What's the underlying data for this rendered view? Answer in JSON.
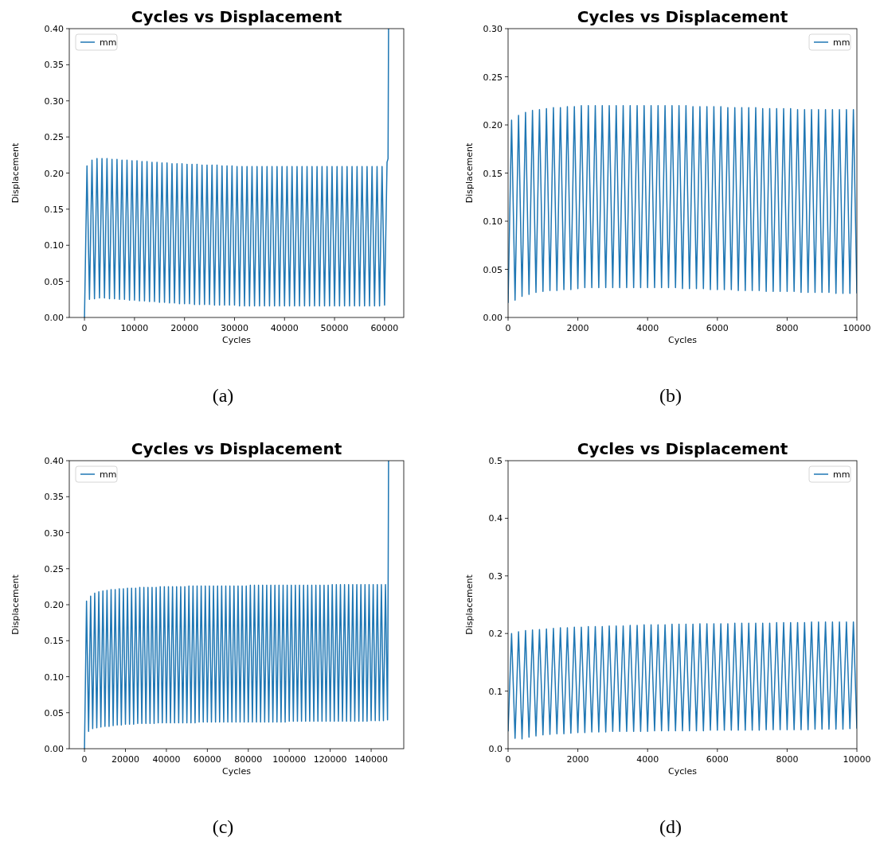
{
  "chart_data": [
    {
      "type": "line",
      "title": "Cycles vs Displacement",
      "xlabel": "Cycles",
      "ylabel": "Displacement",
      "legend": "top left",
      "annotations": [
        "(a)"
      ],
      "xlim": [
        -3040,
        63840
      ],
      "xticks": [
        0,
        10000,
        20000,
        30000,
        40000,
        50000,
        60000
      ],
      "ylim": [
        0,
        0.4
      ],
      "yticks": [
        {
          "value": 0,
          "label": "0.00"
        },
        {
          "value": 0.05,
          "label": "0.05"
        },
        {
          "value": 0.1,
          "label": "0.10"
        },
        {
          "value": 0.15,
          "label": "0.15"
        },
        {
          "value": 0.2,
          "label": "0.20"
        },
        {
          "value": 0.25,
          "label": "0.25"
        },
        {
          "value": 0.3,
          "label": "0.30"
        },
        {
          "value": 0.35,
          "label": "0.35"
        },
        {
          "value": 0.4,
          "label": "0.40"
        }
      ],
      "series": [
        {
          "name": "mm",
          "color": "#1f77b4",
          "x": [
            0,
            500,
            1000,
            1500,
            2000,
            2500,
            3000,
            3500,
            4000,
            4500,
            5000,
            5500,
            6000,
            6500,
            7000,
            7500,
            8000,
            8500,
            9000,
            9500,
            10000,
            10500,
            11000,
            11500,
            12000,
            12500,
            13000,
            13500,
            14000,
            14500,
            15000,
            15500,
            16000,
            16500,
            17000,
            17500,
            18000,
            18500,
            19000,
            19500,
            20000,
            20500,
            21000,
            21500,
            22000,
            22500,
            23000,
            23500,
            24000,
            24500,
            25000,
            25500,
            26000,
            26500,
            27000,
            27500,
            28000,
            28500,
            29000,
            29500,
            30000,
            30500,
            31000,
            31500,
            32000,
            32500,
            33000,
            33500,
            34000,
            34500,
            35000,
            35500,
            36000,
            36500,
            37000,
            37500,
            38000,
            38500,
            39000,
            39500,
            40000,
            40500,
            41000,
            41500,
            42000,
            42500,
            43000,
            43500,
            44000,
            44500,
            45000,
            45500,
            46000,
            46500,
            47000,
            47500,
            48000,
            48500,
            49000,
            49500,
            50000,
            50500,
            51000,
            51500,
            52000,
            52500,
            53000,
            53500,
            54000,
            54500,
            55000,
            55500,
            56000,
            56500,
            57000,
            57500,
            58000,
            58500,
            59000,
            59500,
            60000,
            60500,
            60700,
            60800
          ],
          "values": [
            0,
            0.21,
            0.025,
            0.218,
            0.026,
            0.22,
            0.027,
            0.22,
            0.027,
            0.22,
            0.026,
            0.219,
            0.026,
            0.219,
            0.025,
            0.218,
            0.025,
            0.218,
            0.024,
            0.217,
            0.024,
            0.217,
            0.023,
            0.216,
            0.023,
            0.216,
            0.022,
            0.215,
            0.022,
            0.215,
            0.021,
            0.214,
            0.021,
            0.214,
            0.02,
            0.213,
            0.02,
            0.213,
            0.019,
            0.213,
            0.019,
            0.212,
            0.019,
            0.212,
            0.018,
            0.212,
            0.018,
            0.211,
            0.018,
            0.211,
            0.018,
            0.211,
            0.017,
            0.211,
            0.017,
            0.21,
            0.017,
            0.21,
            0.017,
            0.21,
            0.017,
            0.209,
            0.016,
            0.209,
            0.016,
            0.209,
            0.016,
            0.209,
            0.016,
            0.209,
            0.016,
            0.209,
            0.016,
            0.209,
            0.016,
            0.209,
            0.016,
            0.209,
            0.016,
            0.209,
            0.016,
            0.209,
            0.016,
            0.209,
            0.016,
            0.209,
            0.016,
            0.209,
            0.016,
            0.209,
            0.016,
            0.209,
            0.016,
            0.209,
            0.016,
            0.209,
            0.016,
            0.209,
            0.016,
            0.209,
            0.016,
            0.209,
            0.016,
            0.209,
            0.016,
            0.209,
            0.016,
            0.209,
            0.016,
            0.209,
            0.016,
            0.209,
            0.016,
            0.209,
            0.016,
            0.209,
            0.016,
            0.209,
            0.016,
            0.209,
            0.017,
            0.215,
            0.22,
            0.4
          ]
        }
      ]
    },
    {
      "type": "line",
      "title": "Cycles vs Displacement",
      "xlabel": "Cycles",
      "ylabel": "Displacement",
      "legend": "top right",
      "annotations": [
        "(b)"
      ],
      "xlim": [
        0,
        10000
      ],
      "xticks": [
        0,
        2000,
        4000,
        6000,
        8000,
        10000
      ],
      "ylim": [
        0,
        0.3
      ],
      "yticks": [
        {
          "value": 0,
          "label": "0.00"
        },
        {
          "value": 0.05,
          "label": "0.05"
        },
        {
          "value": 0.1,
          "label": "0.10"
        },
        {
          "value": 0.15,
          "label": "0.15"
        },
        {
          "value": 0.2,
          "label": "0.20"
        },
        {
          "value": 0.25,
          "label": "0.25"
        },
        {
          "value": 0.3,
          "label": "0.30"
        }
      ],
      "series": [
        {
          "name": "mm",
          "color": "#1f77b4",
          "x": [
            0,
            100,
            200,
            300,
            400,
            500,
            600,
            700,
            800,
            900,
            1000,
            1100,
            1200,
            1300,
            1400,
            1500,
            1600,
            1700,
            1800,
            1900,
            2000,
            2100,
            2200,
            2300,
            2400,
            2500,
            2600,
            2700,
            2800,
            2900,
            3000,
            3100,
            3200,
            3300,
            3400,
            3500,
            3600,
            3700,
            3800,
            3900,
            4000,
            4100,
            4200,
            4300,
            4400,
            4500,
            4600,
            4700,
            4800,
            4900,
            5000,
            5100,
            5200,
            5300,
            5400,
            5500,
            5600,
            5700,
            5800,
            5900,
            6000,
            6100,
            6200,
            6300,
            6400,
            6500,
            6600,
            6700,
            6800,
            6900,
            7000,
            7100,
            7200,
            7300,
            7400,
            7500,
            7600,
            7700,
            7800,
            7900,
            8000,
            8100,
            8200,
            8300,
            8400,
            8500,
            8600,
            8700,
            8800,
            8900,
            9000,
            9100,
            9200,
            9300,
            9400,
            9500,
            9600,
            9700,
            9800,
            9900,
            10000
          ],
          "values": [
            0.015,
            0.205,
            0.018,
            0.21,
            0.022,
            0.213,
            0.024,
            0.215,
            0.026,
            0.216,
            0.027,
            0.217,
            0.028,
            0.218,
            0.028,
            0.218,
            0.029,
            0.219,
            0.029,
            0.219,
            0.03,
            0.22,
            0.031,
            0.22,
            0.031,
            0.22,
            0.031,
            0.22,
            0.031,
            0.22,
            0.031,
            0.22,
            0.031,
            0.22,
            0.031,
            0.22,
            0.031,
            0.22,
            0.031,
            0.22,
            0.031,
            0.22,
            0.031,
            0.22,
            0.031,
            0.22,
            0.031,
            0.22,
            0.031,
            0.22,
            0.03,
            0.22,
            0.03,
            0.219,
            0.03,
            0.219,
            0.03,
            0.219,
            0.029,
            0.219,
            0.029,
            0.219,
            0.029,
            0.218,
            0.029,
            0.218,
            0.028,
            0.218,
            0.028,
            0.218,
            0.028,
            0.218,
            0.028,
            0.217,
            0.027,
            0.217,
            0.027,
            0.217,
            0.027,
            0.217,
            0.027,
            0.217,
            0.027,
            0.216,
            0.026,
            0.216,
            0.026,
            0.216,
            0.026,
            0.216,
            0.026,
            0.216,
            0.026,
            0.216,
            0.025,
            0.216,
            0.025,
            0.216,
            0.025,
            0.216,
            0.025
          ]
        }
      ]
    },
    {
      "type": "line",
      "title": "Cycles vs Displacement",
      "xlabel": "Cycles",
      "ylabel": "Displacement",
      "legend": "top left",
      "annotations": [
        "(c)"
      ],
      "xlim": [
        -7425,
        155925
      ],
      "xticks": [
        0,
        20000,
        40000,
        60000,
        80000,
        100000,
        120000,
        140000
      ],
      "ylim": [
        0,
        0.4
      ],
      "yticks": [
        {
          "value": 0,
          "label": "0.00"
        },
        {
          "value": 0.05,
          "label": "0.05"
        },
        {
          "value": 0.1,
          "label": "0.10"
        },
        {
          "value": 0.15,
          "label": "0.15"
        },
        {
          "value": 0.2,
          "label": "0.20"
        },
        {
          "value": 0.25,
          "label": "0.25"
        },
        {
          "value": 0.3,
          "label": "0.30"
        },
        {
          "value": 0.35,
          "label": "0.35"
        },
        {
          "value": 0.4,
          "label": "0.40"
        }
      ],
      "series": [
        {
          "name": "mm",
          "color": "#1f77b4",
          "x": [
            0,
            1000,
            2000,
            3000,
            4000,
            5000,
            6000,
            7000,
            8000,
            9000,
            10000,
            11000,
            12000,
            13000,
            14000,
            15000,
            16000,
            17000,
            18000,
            19000,
            20000,
            21000,
            22000,
            23000,
            24000,
            25000,
            26000,
            27000,
            28000,
            29000,
            30000,
            31000,
            32000,
            33000,
            34000,
            35000,
            36000,
            37000,
            38000,
            39000,
            40000,
            41000,
            42000,
            43000,
            44000,
            45000,
            46000,
            47000,
            48000,
            49000,
            50000,
            51000,
            52000,
            53000,
            54000,
            55000,
            56000,
            57000,
            58000,
            59000,
            60000,
            61000,
            62000,
            63000,
            64000,
            65000,
            66000,
            67000,
            68000,
            69000,
            70000,
            71000,
            72000,
            73000,
            74000,
            75000,
            76000,
            77000,
            78000,
            79000,
            80000,
            81000,
            82000,
            83000,
            84000,
            85000,
            86000,
            87000,
            88000,
            89000,
            90000,
            91000,
            92000,
            93000,
            94000,
            95000,
            96000,
            97000,
            98000,
            99000,
            100000,
            101000,
            102000,
            103000,
            104000,
            105000,
            106000,
            107000,
            108000,
            109000,
            110000,
            111000,
            112000,
            113000,
            114000,
            115000,
            116000,
            117000,
            118000,
            119000,
            120000,
            121000,
            122000,
            123000,
            124000,
            125000,
            126000,
            127000,
            128000,
            129000,
            130000,
            131000,
            132000,
            133000,
            134000,
            135000,
            136000,
            137000,
            138000,
            139000,
            140000,
            141000,
            142000,
            143000,
            144000,
            145000,
            146000,
            147000,
            148000,
            148300,
            148500
          ],
          "values": [
            0,
            0.205,
            0.024,
            0.212,
            0.028,
            0.216,
            0.029,
            0.218,
            0.03,
            0.219,
            0.031,
            0.22,
            0.031,
            0.221,
            0.032,
            0.221,
            0.033,
            0.222,
            0.033,
            0.222,
            0.034,
            0.223,
            0.034,
            0.223,
            0.034,
            0.223,
            0.035,
            0.224,
            0.035,
            0.224,
            0.035,
            0.224,
            0.035,
            0.224,
            0.035,
            0.224,
            0.036,
            0.225,
            0.036,
            0.225,
            0.036,
            0.225,
            0.036,
            0.225,
            0.036,
            0.225,
            0.036,
            0.225,
            0.036,
            0.225,
            0.036,
            0.226,
            0.036,
            0.226,
            0.036,
            0.226,
            0.037,
            0.226,
            0.037,
            0.226,
            0.037,
            0.226,
            0.037,
            0.226,
            0.037,
            0.226,
            0.037,
            0.226,
            0.037,
            0.226,
            0.037,
            0.226,
            0.037,
            0.226,
            0.037,
            0.226,
            0.037,
            0.226,
            0.037,
            0.226,
            0.037,
            0.227,
            0.037,
            0.227,
            0.037,
            0.227,
            0.037,
            0.227,
            0.037,
            0.227,
            0.037,
            0.227,
            0.037,
            0.227,
            0.037,
            0.227,
            0.037,
            0.227,
            0.037,
            0.227,
            0.038,
            0.227,
            0.038,
            0.227,
            0.038,
            0.227,
            0.038,
            0.227,
            0.038,
            0.227,
            0.038,
            0.227,
            0.038,
            0.227,
            0.038,
            0.227,
            0.038,
            0.227,
            0.038,
            0.227,
            0.038,
            0.228,
            0.038,
            0.228,
            0.038,
            0.228,
            0.038,
            0.228,
            0.038,
            0.228,
            0.038,
            0.228,
            0.038,
            0.228,
            0.038,
            0.228,
            0.038,
            0.228,
            0.038,
            0.228,
            0.039,
            0.228,
            0.039,
            0.228,
            0.039,
            0.228,
            0.039,
            0.228,
            0.04,
            0.235,
            0.4
          ]
        }
      ]
    },
    {
      "type": "line",
      "title": "Cycles vs Displacement",
      "xlabel": "Cycles",
      "ylabel": "Displacement",
      "legend": "top right",
      "annotations": [
        "(d)"
      ],
      "xlim": [
        0,
        10000
      ],
      "xticks": [
        0,
        2000,
        4000,
        6000,
        8000,
        10000
      ],
      "ylim": [
        0,
        0.5
      ],
      "yticks": [
        {
          "value": 0,
          "label": "0.0"
        },
        {
          "value": 0.1,
          "label": "0.1"
        },
        {
          "value": 0.2,
          "label": "0.2"
        },
        {
          "value": 0.3,
          "label": "0.3"
        },
        {
          "value": 0.4,
          "label": "0.4"
        },
        {
          "value": 0.5,
          "label": "0.5"
        }
      ],
      "series": [
        {
          "name": "mm",
          "color": "#1f77b4",
          "x": [
            0,
            100,
            200,
            300,
            400,
            500,
            600,
            700,
            800,
            900,
            1000,
            1100,
            1200,
            1300,
            1400,
            1500,
            1600,
            1700,
            1800,
            1900,
            2000,
            2100,
            2200,
            2300,
            2400,
            2500,
            2600,
            2700,
            2800,
            2900,
            3000,
            3100,
            3200,
            3300,
            3400,
            3500,
            3600,
            3700,
            3800,
            3900,
            4000,
            4100,
            4200,
            4300,
            4400,
            4500,
            4600,
            4700,
            4800,
            4900,
            5000,
            5100,
            5200,
            5300,
            5400,
            5500,
            5600,
            5700,
            5800,
            5900,
            6000,
            6100,
            6200,
            6300,
            6400,
            6500,
            6600,
            6700,
            6800,
            6900,
            7000,
            7100,
            7200,
            7300,
            7400,
            7500,
            7600,
            7700,
            7800,
            7900,
            8000,
            8100,
            8200,
            8300,
            8400,
            8500,
            8600,
            8700,
            8800,
            8900,
            9000,
            9100,
            9200,
            9300,
            9400,
            9500,
            9600,
            9700,
            9800,
            9900,
            10000
          ],
          "values": [
            0.03,
            0.2,
            0.018,
            0.203,
            0.017,
            0.205,
            0.02,
            0.206,
            0.022,
            0.207,
            0.024,
            0.208,
            0.025,
            0.209,
            0.026,
            0.21,
            0.026,
            0.21,
            0.027,
            0.211,
            0.028,
            0.211,
            0.028,
            0.212,
            0.029,
            0.212,
            0.029,
            0.212,
            0.029,
            0.213,
            0.03,
            0.213,
            0.03,
            0.213,
            0.03,
            0.214,
            0.03,
            0.214,
            0.03,
            0.215,
            0.03,
            0.215,
            0.031,
            0.215,
            0.031,
            0.215,
            0.031,
            0.216,
            0.031,
            0.216,
            0.031,
            0.216,
            0.031,
            0.216,
            0.031,
            0.217,
            0.031,
            0.217,
            0.032,
            0.217,
            0.032,
            0.217,
            0.032,
            0.217,
            0.032,
            0.218,
            0.032,
            0.218,
            0.032,
            0.218,
            0.032,
            0.218,
            0.032,
            0.218,
            0.033,
            0.218,
            0.033,
            0.219,
            0.033,
            0.219,
            0.033,
            0.219,
            0.033,
            0.219,
            0.033,
            0.219,
            0.033,
            0.22,
            0.034,
            0.22,
            0.034,
            0.22,
            0.034,
            0.22,
            0.034,
            0.22,
            0.034,
            0.22,
            0.035,
            0.22,
            0.035
          ]
        }
      ]
    }
  ]
}
